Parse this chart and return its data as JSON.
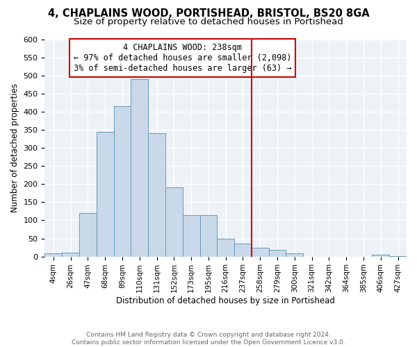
{
  "title": "4, CHAPLAINS WOOD, PORTISHEAD, BRISTOL, BS20 8GA",
  "subtitle": "Size of property relative to detached houses in Portishead",
  "xlabel": "Distribution of detached houses by size in Portishead",
  "ylabel": "Number of detached properties",
  "footer": "Contains HM Land Registry data © Crown copyright and database right 2024.\nContains public sector information licensed under the Open Government Licence v3.0.",
  "bar_labels": [
    "4sqm",
    "26sqm",
    "47sqm",
    "68sqm",
    "89sqm",
    "110sqm",
    "131sqm",
    "152sqm",
    "173sqm",
    "195sqm",
    "216sqm",
    "237sqm",
    "258sqm",
    "279sqm",
    "300sqm",
    "321sqm",
    "342sqm",
    "364sqm",
    "385sqm",
    "406sqm",
    "427sqm"
  ],
  "bar_values": [
    8,
    10,
    120,
    345,
    415,
    490,
    340,
    190,
    115,
    115,
    50,
    35,
    25,
    18,
    8,
    0,
    0,
    0,
    0,
    5,
    2
  ],
  "bar_color": "#c9d9ea",
  "bar_edgecolor": "#6699bb",
  "vline_x_index": 12,
  "vline_color": "#cc0000",
  "annotation_text": "4 CHAPLAINS WOOD: 238sqm\n← 97% of detached houses are smaller (2,098)\n3% of semi-detached houses are larger (63) →",
  "annotation_box_edgecolor": "#cc0000",
  "ylim": [
    0,
    600
  ],
  "yticks": [
    0,
    50,
    100,
    150,
    200,
    250,
    300,
    350,
    400,
    450,
    500,
    550,
    600
  ],
  "background_color": "#edf2f7",
  "grid_color": "white",
  "title_fontsize": 10.5,
  "subtitle_fontsize": 9.5,
  "xlabel_fontsize": 8.5,
  "ylabel_fontsize": 8.5,
  "annotation_fontsize": 8.5
}
